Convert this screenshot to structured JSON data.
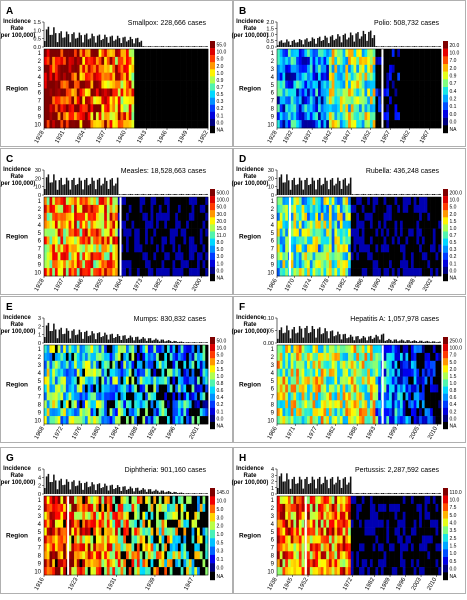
{
  "figure": {
    "panels_order": [
      "A",
      "B",
      "C",
      "D",
      "E",
      "F",
      "G",
      "H"
    ]
  },
  "colorscale": {
    "stops": [
      "#00007f",
      "#0000ff",
      "#0080ff",
      "#00e0ff",
      "#7fff7f",
      "#ffff00",
      "#ff8000",
      "#ff0000",
      "#7f0000"
    ],
    "na_color": "#000000"
  },
  "chart_data": [
    {
      "type": "heatmap",
      "panel": "A",
      "title": "Smallpox: 228,666 cases",
      "ylabel_top": [
        "Incidence",
        "Rate",
        "(per 100,000)"
      ],
      "ylabel_bottom": "Region",
      "histogram_ticks": [
        "0.0",
        "0.5",
        "1.0",
        "1.5"
      ],
      "histogram_ylim": [
        0,
        1.5
      ],
      "regions": [
        "1",
        "2",
        "3",
        "4",
        "5",
        "6",
        "7",
        "8",
        "9",
        "10"
      ],
      "x_ticks": [
        "1928",
        "1931",
        "1934",
        "1937",
        "1940",
        "1943",
        "1946",
        "1949",
        "1952"
      ],
      "x_range": [
        1928,
        1952
      ],
      "data_end_year": 1952,
      "vaccine_year": null,
      "colorbar_labels": [
        "55.0",
        "10.0",
        "5.0",
        "2.0",
        "1.0",
        "0.9",
        "0.7",
        "0.5",
        "0.3",
        "0.2",
        "0.1",
        "0.0",
        "NA"
      ]
    },
    {
      "type": "heatmap",
      "panel": "B",
      "title": "Polio: 508,732 cases",
      "ylabel_top": [
        "Incidence",
        "Rate",
        "(per 100,000)"
      ],
      "ylabel_bottom": "Region",
      "histogram_ticks": [
        "0.0",
        "0.5",
        "1.0",
        "1.5",
        "2.0"
      ],
      "histogram_ylim": [
        0,
        2.0
      ],
      "regions": [
        "1",
        "2",
        "3",
        "4",
        "5",
        "6",
        "7",
        "8",
        "9",
        "10"
      ],
      "x_ticks": [
        "1928",
        "1932",
        "1937",
        "1942",
        "1947",
        "1952",
        "1957",
        "1962",
        "1967"
      ],
      "x_range": [
        1928,
        1970
      ],
      "data_end_year": 1970,
      "vaccine_year": 1955,
      "colorbar_labels": [
        "20.0",
        "10.0",
        "7.0",
        "2.0",
        "0.9",
        "0.7",
        "0.4",
        "0.2",
        "0.1",
        "0.0",
        "0.0",
        "NA"
      ]
    },
    {
      "type": "heatmap",
      "panel": "C",
      "title": "Measles: 18,528,663 cases",
      "ylabel_top": [
        "Incidence",
        "Rate",
        "(per 100,000)"
      ],
      "ylabel_bottom": "Region",
      "histogram_ticks": [
        "0",
        "10",
        "20",
        "30"
      ],
      "histogram_ylim": [
        0,
        30
      ],
      "regions": [
        "1",
        "2",
        "3",
        "4",
        "5",
        "6",
        "7",
        "8",
        "9",
        "10"
      ],
      "x_ticks": [
        "1928",
        "1937",
        "1946",
        "1955",
        "1964",
        "1973",
        "1982",
        "1991",
        "2000"
      ],
      "x_range": [
        1928,
        2003
      ],
      "data_end_year": 2003,
      "vaccine_year": 1963,
      "colorbar_labels": [
        "500.0",
        "100.0",
        "50.0",
        "30.0",
        "20.0",
        "15.0",
        "11.0",
        "8.0",
        "5.0",
        "3.0",
        "1.0",
        "0.0",
        "NA"
      ]
    },
    {
      "type": "heatmap",
      "panel": "D",
      "title": "Rubella: 436,248 cases",
      "ylabel_top": [
        "Incidence",
        "Rate",
        "(per 100,000)"
      ],
      "ylabel_bottom": "Region",
      "histogram_ticks": [
        "0",
        "10",
        "20",
        "30"
      ],
      "histogram_ylim": [
        0,
        30
      ],
      "regions": [
        "1",
        "2",
        "3",
        "4",
        "5",
        "6",
        "7",
        "8",
        "9",
        "10"
      ],
      "x_ticks": [
        "1966",
        "1970",
        "1974",
        "1978",
        "1982",
        "1986",
        "1990",
        "1994",
        "1998",
        "2002"
      ],
      "x_range": [
        1966,
        2004
      ],
      "data_end_year": 2004,
      "vaccine_year": 1969,
      "colorbar_labels": [
        "200.0",
        "10.0",
        "5.0",
        "2.0",
        "1.5",
        "1.0",
        "0.7",
        "0.5",
        "0.3",
        "0.2",
        "0.1",
        "0.0",
        "NA"
      ]
    },
    {
      "type": "heatmap",
      "panel": "E",
      "title": "Mumps: 830,832 cases",
      "ylabel_top": [
        "Incidence",
        "Rate",
        "(per 100,000)"
      ],
      "ylabel_bottom": "Region",
      "histogram_ticks": [
        "0",
        "1",
        "2",
        "3"
      ],
      "histogram_ylim": [
        0,
        3
      ],
      "regions": [
        "1",
        "2",
        "3",
        "4",
        "5",
        "6",
        "7",
        "8",
        "9",
        "10"
      ],
      "x_ticks": [
        "1968",
        "1972",
        "1976",
        "1980",
        "1984",
        "1988",
        "1992",
        "1996",
        "2001"
      ],
      "x_range": [
        1968,
        2003
      ],
      "data_end_year": 2003,
      "vaccine_year": null,
      "colorbar_labels": [
        "50.0",
        "10.0",
        "5.0",
        "2.0",
        "1.5",
        "1.0",
        "0.8",
        "0.6",
        "0.4",
        "0.2",
        "0.1",
        "0.0",
        "NA"
      ]
    },
    {
      "type": "heatmap",
      "panel": "F",
      "title": "Hepatitis A: 1,057,978 cases",
      "ylabel_top": [
        "Incidence",
        "Rate",
        "(per 100,000)"
      ],
      "ylabel_bottom": "Region",
      "histogram_ticks": [
        "0.00",
        "0.05",
        "0.10"
      ],
      "histogram_ylim": [
        0,
        0.1
      ],
      "regions": [
        "1",
        "2",
        "3",
        "4",
        "5",
        "6",
        "7",
        "8",
        "9",
        "10"
      ],
      "x_ticks": [
        "1966",
        "1971",
        "1977",
        "1982",
        "1988",
        "1993",
        "1999",
        "2005",
        "2010"
      ],
      "x_range": [
        1966,
        2011
      ],
      "data_end_year": 2011,
      "vaccine_year": 1995,
      "colorbar_labels": [
        "250.0",
        "100.0",
        "7.0",
        "5.0",
        "2.0",
        "1.5",
        "1.0",
        "0.8",
        "0.6",
        "0.4",
        "0.2",
        "0.0",
        "NA"
      ]
    },
    {
      "type": "heatmap",
      "panel": "G",
      "title": "Diphtheria: 901,160 cases",
      "ylabel_top": [
        "Incidence",
        "Rate",
        "(per 100,000)"
      ],
      "ylabel_bottom": "Region",
      "histogram_ticks": [
        "0",
        "2",
        "4",
        "6"
      ],
      "histogram_ylim": [
        0,
        6
      ],
      "regions": [
        "1",
        "2",
        "3",
        "4",
        "5",
        "6",
        "7",
        "8",
        "9",
        "10"
      ],
      "x_ticks": [
        "1916",
        "1923",
        "1931",
        "1939",
        "1947"
      ],
      "x_range": [
        1916,
        1950
      ],
      "data_end_year": 1950,
      "vaccine_year": 1921,
      "colorbar_labels": [
        "145.0",
        "10.0",
        "5.0",
        "3.0",
        "2.0",
        "1.0",
        "0.5",
        "0.3",
        "0.1",
        "0.0",
        "NA"
      ]
    },
    {
      "type": "heatmap",
      "panel": "H",
      "title": "Pertussis: 2,287,592 cases",
      "ylabel_top": [
        "Incidence",
        "Rate",
        "(per 100,000)"
      ],
      "ylabel_bottom": "Region",
      "histogram_ticks": [
        "0",
        "1",
        "2",
        "3",
        "4"
      ],
      "histogram_ylim": [
        0,
        4
      ],
      "regions": [
        "1",
        "2",
        "3",
        "4",
        "5",
        "6",
        "7",
        "8",
        "9",
        "10"
      ],
      "x_ticks": [
        "1938",
        "1945",
        "1952",
        "1972",
        "1982",
        "1989",
        "1996",
        "2003",
        "2010"
      ],
      "x_range": [
        1938,
        2012
      ],
      "data_end_year": 2012,
      "vaccine_year": 1951,
      "colorbar_labels": [
        "110.0",
        "10.0",
        "7.5",
        "5.0",
        "4.0",
        "3.5",
        "2.5",
        "1.5",
        "1.0",
        "0.5",
        "0.0",
        "NA"
      ]
    }
  ]
}
